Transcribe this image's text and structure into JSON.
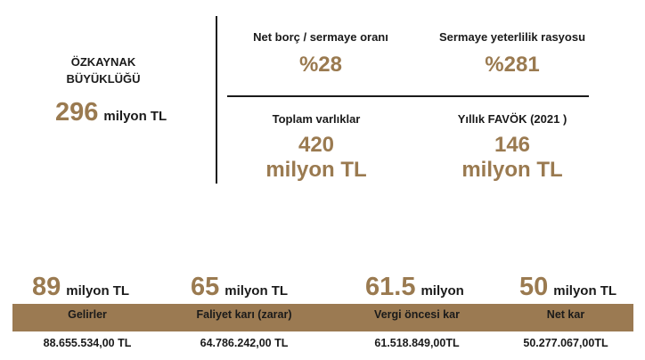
{
  "equity": {
    "title": "ÖZKAYNAK BÜYÜKLÜĞÜ",
    "value": "296",
    "unit": "milyon TL"
  },
  "ratios": {
    "net_debt": {
      "label": "Net borç / sermaye oranı",
      "value": "%28"
    },
    "capital_adequacy": {
      "label": "Sermaye yeterlilik rasyosu",
      "value": "%281"
    },
    "total_assets": {
      "label": "Toplam varlıklar",
      "value": "420",
      "unit": "milyon TL"
    },
    "ebitda": {
      "label": "Yıllık FAVÖK (2021 )",
      "value": "146",
      "unit": "milyon TL"
    }
  },
  "metrics": [
    {
      "value": "89",
      "unit": "milyon TL",
      "label": "Gelirler",
      "amount": "88.655.534,00 TL"
    },
    {
      "value": "65",
      "unit": "milyon TL",
      "label": "Faliyet karı (zarar)",
      "amount": "64.786.242,00 TL"
    },
    {
      "value": "61.5",
      "unit": "milyon",
      "label": "Vergi öncesi kar",
      "amount": "61.518.849,00TL"
    },
    {
      "value": "50",
      "unit": "milyon TL",
      "label": "Net kar",
      "amount": "50.277.067,00TL"
    }
  ],
  "colors": {
    "accent": "#9a7a50",
    "band": "#9b7a52",
    "text": "#1a1a1a"
  }
}
